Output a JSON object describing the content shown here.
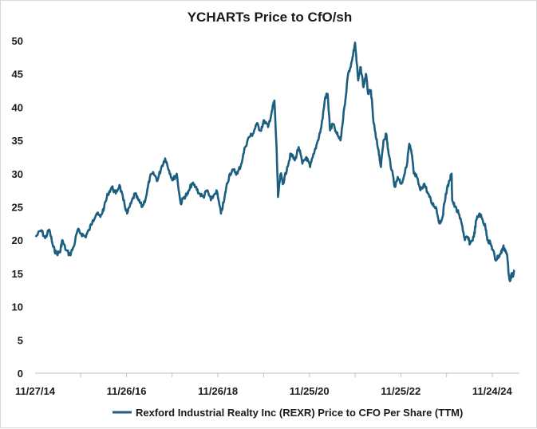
{
  "chart_data": {
    "type": "line",
    "title": "YCHARTs Price to CfO/sh",
    "xlabel": "",
    "ylabel": "",
    "ylim": [
      0,
      50
    ],
    "yticks": [
      0,
      5,
      10,
      15,
      20,
      25,
      30,
      35,
      40,
      45,
      50
    ],
    "xlim": [
      "2014-11-27",
      "2025-06-30"
    ],
    "xtick_labels": [
      {
        "date": "2014-11-27",
        "label": "11/27/14"
      },
      {
        "date": "2016-11-26",
        "label": "11/26/16"
      },
      {
        "date": "2018-11-26",
        "label": "11/26/18"
      },
      {
        "date": "2020-11-25",
        "label": "11/25/20"
      },
      {
        "date": "2022-11-25",
        "label": "11/25/22"
      },
      {
        "date": "2024-11-24",
        "label": "11/24/24"
      }
    ],
    "grid": false,
    "legend_position": "bottom",
    "line_color": "#1b5e80",
    "series": [
      {
        "name": "Rexford Industrial Realty Inc (REXR) Price to CFO Per Share (TTM)",
        "points": [
          [
            "2014-12-01",
            20.5
          ],
          [
            "2015-01-15",
            21.5
          ],
          [
            "2015-02-15",
            20.3
          ],
          [
            "2015-03-20",
            21.6
          ],
          [
            "2015-04-20",
            19.0
          ],
          [
            "2015-05-15",
            18.0
          ],
          [
            "2015-06-15",
            18.2
          ],
          [
            "2015-07-01",
            20.0
          ],
          [
            "2015-08-01",
            18.5
          ],
          [
            "2015-09-01",
            17.8
          ],
          [
            "2015-10-01",
            19.0
          ],
          [
            "2015-11-01",
            21.5
          ],
          [
            "2015-12-01",
            21.0
          ],
          [
            "2016-01-01",
            20.5
          ],
          [
            "2016-02-01",
            21.5
          ],
          [
            "2016-03-01",
            23.0
          ],
          [
            "2016-04-01",
            24.0
          ],
          [
            "2016-05-01",
            23.5
          ],
          [
            "2016-06-01",
            25.0
          ],
          [
            "2016-07-01",
            27.0
          ],
          [
            "2016-08-01",
            28.0
          ],
          [
            "2016-09-01",
            27.0
          ],
          [
            "2016-10-01",
            28.3
          ],
          [
            "2016-11-01",
            26.0
          ],
          [
            "2016-12-01",
            24.0
          ],
          [
            "2017-01-01",
            25.5
          ],
          [
            "2017-02-01",
            27.0
          ],
          [
            "2017-03-01",
            26.0
          ],
          [
            "2017-04-01",
            25.0
          ],
          [
            "2017-05-01",
            26.5
          ],
          [
            "2017-06-01",
            29.5
          ],
          [
            "2017-07-01",
            30.0
          ],
          [
            "2017-08-01",
            29.0
          ],
          [
            "2017-09-01",
            31.0
          ],
          [
            "2017-10-01",
            32.3
          ],
          [
            "2017-11-01",
            30.5
          ],
          [
            "2017-12-01",
            29.0
          ],
          [
            "2018-01-01",
            30.0
          ],
          [
            "2018-02-01",
            25.5
          ],
          [
            "2018-03-01",
            26.5
          ],
          [
            "2018-04-01",
            27.0
          ],
          [
            "2018-05-01",
            28.5
          ],
          [
            "2018-06-01",
            28.0
          ],
          [
            "2018-07-01",
            27.0
          ],
          [
            "2018-08-01",
            26.5
          ],
          [
            "2018-09-01",
            27.5
          ],
          [
            "2018-10-01",
            26.0
          ],
          [
            "2018-11-15",
            27.5
          ],
          [
            "2018-12-20",
            24.0
          ],
          [
            "2019-01-15",
            26.0
          ],
          [
            "2019-02-01",
            28.0
          ],
          [
            "2019-03-01",
            30.0
          ],
          [
            "2019-04-01",
            30.5
          ],
          [
            "2019-05-01",
            30.0
          ],
          [
            "2019-06-01",
            31.5
          ],
          [
            "2019-07-01",
            34.0
          ],
          [
            "2019-08-01",
            35.5
          ],
          [
            "2019-09-01",
            36.0
          ],
          [
            "2019-10-01",
            37.5
          ],
          [
            "2019-11-01",
            36.5
          ],
          [
            "2019-12-01",
            38.0
          ],
          [
            "2020-01-01",
            37.0
          ],
          [
            "2020-02-01",
            39.5
          ],
          [
            "2020-02-20",
            41.0
          ],
          [
            "2020-03-10",
            33.0
          ],
          [
            "2020-03-20",
            26.5
          ],
          [
            "2020-04-10",
            30.0
          ],
          [
            "2020-05-01",
            28.5
          ],
          [
            "2020-06-01",
            31.0
          ],
          [
            "2020-07-01",
            33.0
          ],
          [
            "2020-08-01",
            32.0
          ],
          [
            "2020-09-01",
            34.0
          ],
          [
            "2020-10-01",
            31.5
          ],
          [
            "2020-11-01",
            32.5
          ],
          [
            "2020-12-01",
            31.0
          ],
          [
            "2021-01-01",
            33.0
          ],
          [
            "2021-02-01",
            35.0
          ],
          [
            "2021-03-01",
            37.0
          ],
          [
            "2021-04-01",
            41.5
          ],
          [
            "2021-04-20",
            42.0
          ],
          [
            "2021-05-10",
            36.5
          ],
          [
            "2021-06-01",
            37.5
          ],
          [
            "2021-07-01",
            36.0
          ],
          [
            "2021-08-01",
            35.0
          ],
          [
            "2021-09-01",
            40.0
          ],
          [
            "2021-10-01",
            45.0
          ],
          [
            "2021-11-01",
            47.0
          ],
          [
            "2021-11-25",
            49.7
          ],
          [
            "2021-12-20",
            44.0
          ],
          [
            "2022-01-10",
            46.0
          ],
          [
            "2022-02-01",
            43.0
          ],
          [
            "2022-02-20",
            45.0
          ],
          [
            "2022-03-10",
            42.0
          ],
          [
            "2022-04-01",
            42.5
          ],
          [
            "2022-04-20",
            38.0
          ],
          [
            "2022-05-10",
            35.5
          ],
          [
            "2022-06-01",
            33.5
          ],
          [
            "2022-06-20",
            31.0
          ],
          [
            "2022-07-10",
            35.0
          ],
          [
            "2022-08-01",
            36.0
          ],
          [
            "2022-08-20",
            33.0
          ],
          [
            "2022-09-15",
            30.5
          ],
          [
            "2022-10-10",
            28.0
          ],
          [
            "2022-11-01",
            29.5
          ],
          [
            "2022-12-01",
            28.5
          ],
          [
            "2023-01-10",
            31.0
          ],
          [
            "2023-02-01",
            34.5
          ],
          [
            "2023-02-20",
            33.0
          ],
          [
            "2023-03-10",
            30.0
          ],
          [
            "2023-04-01",
            29.5
          ],
          [
            "2023-05-01",
            27.5
          ],
          [
            "2023-06-01",
            28.5
          ],
          [
            "2023-07-01",
            27.0
          ],
          [
            "2023-08-01",
            25.5
          ],
          [
            "2023-09-01",
            25.0
          ],
          [
            "2023-10-01",
            22.5
          ],
          [
            "2023-10-25",
            23.5
          ],
          [
            "2023-11-20",
            27.0
          ],
          [
            "2023-12-20",
            29.0
          ],
          [
            "2024-01-05",
            30.0
          ],
          [
            "2024-01-10",
            26.0
          ],
          [
            "2024-02-01",
            25.0
          ],
          [
            "2024-03-01",
            24.0
          ],
          [
            "2024-04-01",
            22.0
          ],
          [
            "2024-04-20",
            20.0
          ],
          [
            "2024-05-10",
            20.5
          ],
          [
            "2024-06-01",
            19.5
          ],
          [
            "2024-07-01",
            20.5
          ],
          [
            "2024-07-20",
            23.0
          ],
          [
            "2024-08-15",
            24.0
          ],
          [
            "2024-09-10",
            23.0
          ],
          [
            "2024-10-01",
            22.0
          ],
          [
            "2024-10-20",
            20.0
          ],
          [
            "2024-11-10",
            19.5
          ],
          [
            "2024-12-01",
            18.5
          ],
          [
            "2024-12-20",
            17.0
          ],
          [
            "2025-01-10",
            17.5
          ],
          [
            "2025-02-01",
            18.0
          ],
          [
            "2025-02-20",
            19.0
          ],
          [
            "2025-03-10",
            18.5
          ],
          [
            "2025-03-25",
            17.5
          ],
          [
            "2025-04-08",
            14.5
          ],
          [
            "2025-04-20",
            14.0
          ],
          [
            "2025-05-01",
            15.0
          ],
          [
            "2025-05-10",
            14.5
          ],
          [
            "2025-05-20",
            15.5
          ]
        ]
      }
    ]
  }
}
